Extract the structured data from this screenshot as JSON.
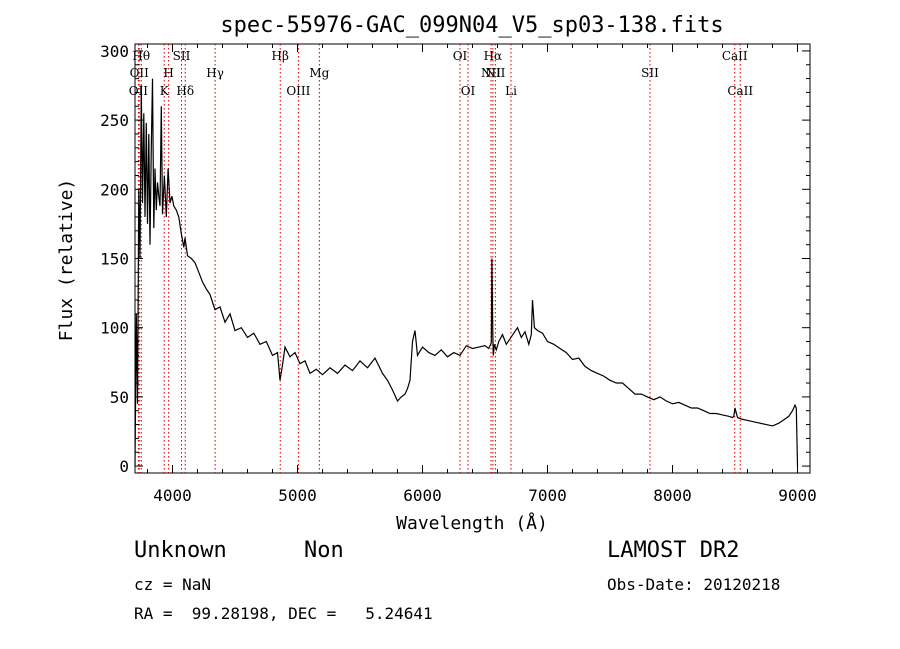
{
  "chart_data": {
    "type": "line",
    "title": "spec-55976-GAC_099N04_V5_sp03-138.fits",
    "xlabel": "Wavelength (Å)",
    "ylabel": "Flux (relative)",
    "xlim": [
      3700,
      9100
    ],
    "ylim": [
      -5,
      305
    ],
    "xticks": [
      4000,
      5000,
      6000,
      7000,
      8000,
      9000
    ],
    "yticks": [
      0,
      50,
      100,
      150,
      200,
      250,
      300
    ],
    "grid": false,
    "series": [
      {
        "x": [
          3700,
          3710,
          3720,
          3730,
          3740,
          3750,
          3760,
          3770,
          3780,
          3790,
          3800,
          3810,
          3820,
          3830,
          3840,
          3850,
          3860,
          3870,
          3880,
          3890,
          3900,
          3910,
          3920,
          3935,
          3950,
          3965,
          3980,
          3995,
          4010,
          4030,
          4050,
          4070,
          4090,
          4100,
          4120,
          4150,
          4180,
          4210,
          4240,
          4270,
          4300,
          4340,
          4380,
          4420,
          4460,
          4500,
          4550,
          4600,
          4650,
          4700,
          4750,
          4800,
          4840,
          4860,
          4880,
          4900,
          4940,
          4980,
          5020,
          5060,
          5100,
          5150,
          5200,
          5260,
          5320,
          5380,
          5440,
          5500,
          5560,
          5620,
          5680,
          5720,
          5760,
          5800,
          5830,
          5860,
          5880,
          5900,
          5920,
          5940,
          5960,
          5980,
          6000,
          6050,
          6100,
          6150,
          6200,
          6250,
          6300,
          6350,
          6400,
          6450,
          6500,
          6530,
          6550,
          6555,
          6562,
          6566,
          6575,
          6590,
          6610,
          6640,
          6670,
          6700,
          6730,
          6760,
          6790,
          6820,
          6850,
          6870,
          6880,
          6895,
          6920,
          6960,
          7000,
          7050,
          7100,
          7150,
          7200,
          7250,
          7300,
          7350,
          7400,
          7450,
          7500,
          7550,
          7600,
          7650,
          7700,
          7750,
          7800,
          7850,
          7900,
          7950,
          8000,
          8050,
          8100,
          8150,
          8200,
          8250,
          8300,
          8350,
          8400,
          8450,
          8480,
          8490,
          8500,
          8520,
          8550,
          8600,
          8650,
          8700,
          8750,
          8800,
          8850,
          8900,
          8930,
          8960,
          8980,
          8990,
          9000
        ],
        "y": [
          0,
          110,
          45,
          200,
          150,
          275,
          190,
          255,
          180,
          248,
          175,
          240,
          160,
          230,
          280,
          172,
          215,
          185,
          205,
          195,
          188,
          260,
          182,
          210,
          180,
          215,
          190,
          195,
          188,
          185,
          180,
          168,
          158,
          165,
          152,
          150,
          147,
          140,
          133,
          128,
          124,
          113,
          115,
          104,
          110,
          98,
          100,
          93,
          96,
          88,
          90,
          80,
          82,
          62,
          73,
          86,
          79,
          82,
          74,
          76,
          67,
          70,
          66,
          71,
          67,
          73,
          69,
          76,
          71,
          78,
          67,
          62,
          55,
          47,
          50,
          52,
          56,
          62,
          90,
          98,
          80,
          83,
          86,
          82,
          80,
          84,
          79,
          82,
          80,
          87,
          85,
          86,
          87,
          85,
          89,
          150,
          95,
          80,
          88,
          84,
          90,
          95,
          88,
          92,
          96,
          100,
          93,
          97,
          88,
          95,
          120,
          100,
          98,
          96,
          90,
          88,
          85,
          82,
          77,
          78,
          72,
          69,
          67,
          65,
          62,
          60,
          60,
          56,
          52,
          52,
          50,
          48,
          50,
          47,
          45,
          46,
          44,
          42,
          42,
          40,
          38,
          38,
          37,
          36,
          35,
          36,
          42,
          35,
          34,
          33,
          32,
          31,
          30,
          29,
          31,
          34,
          36,
          40,
          44,
          42,
          0
        ]
      }
    ],
    "lines": [
      {
        "x": 3727,
        "label": "OII",
        "row": 2
      },
      {
        "x": 3734,
        "label": "OII",
        "row": 1
      },
      {
        "x": 3750,
        "label": "Hθ",
        "row": 0
      },
      {
        "x": 3934,
        "label": "K",
        "row": 2
      },
      {
        "x": 3969,
        "label": "H",
        "row": 1
      },
      {
        "x": 4072,
        "label": "SII",
        "row": 0
      },
      {
        "x": 4102,
        "label": "Hδ",
        "row": 2
      },
      {
        "x": 4341,
        "label": "Hγ",
        "row": 1
      },
      {
        "x": 4862,
        "label": "Hβ",
        "row": 0
      },
      {
        "x": 5007,
        "label": "OIII",
        "row": 2
      },
      {
        "x": 5175,
        "label": "Mg",
        "row": 1
      },
      {
        "x": 6300,
        "label": "OI",
        "row": 0
      },
      {
        "x": 6364,
        "label": "OI",
        "row": 2
      },
      {
        "x": 6548,
        "label": "NII",
        "row": 1
      },
      {
        "x": 6563,
        "label": "Hα",
        "row": 0
      },
      {
        "x": 6583,
        "label": "NII",
        "row": 1
      },
      {
        "x": 6708,
        "label": "Li",
        "row": 2
      },
      {
        "x": 7820,
        "label": "SII",
        "row": 1
      },
      {
        "x": 8498,
        "label": "CaII",
        "row": 0
      },
      {
        "x": 8542,
        "label": "CaII",
        "row": 2
      }
    ],
    "line_color": "#cc0000"
  },
  "info": {
    "object_class": "Unknown",
    "object_subclass": "Non",
    "survey": "LAMOST DR2",
    "cz": "cz = NaN",
    "obs_date": "Obs-Date: 20120218",
    "radec": "RA =  99.28198, DEC =   5.24641"
  }
}
